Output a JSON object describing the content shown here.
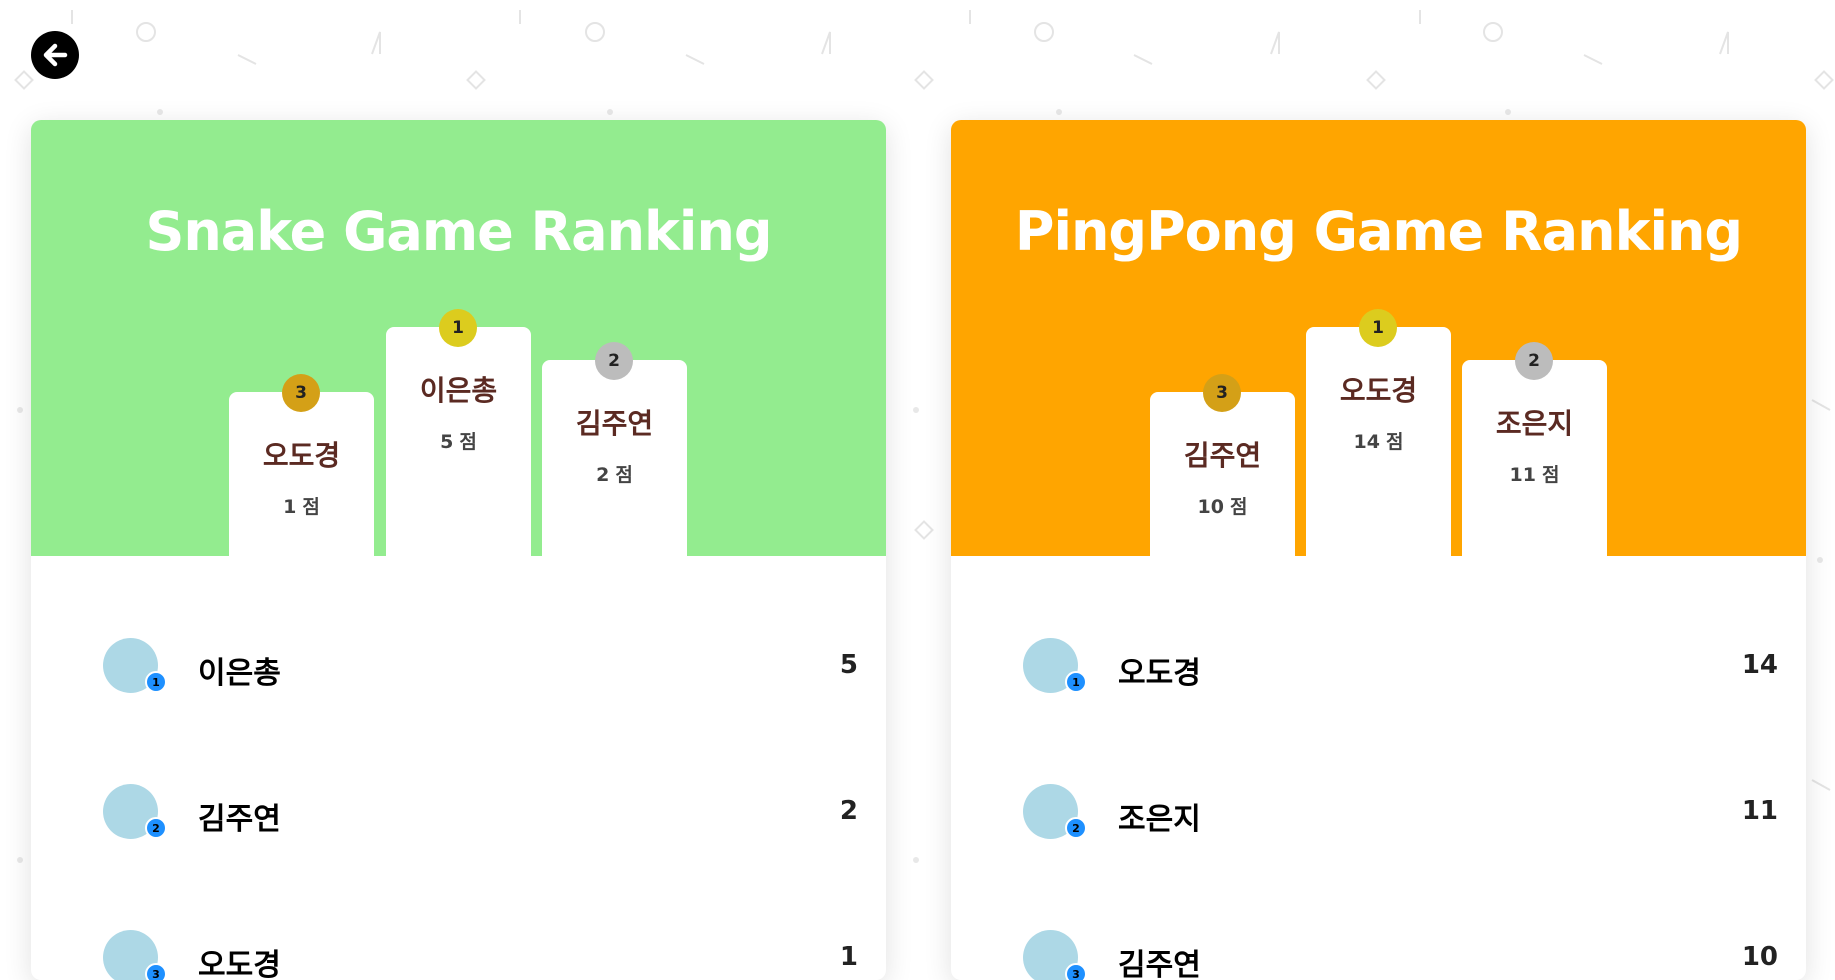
{
  "colors": {
    "snake_header": "#93ec8f",
    "pingpong_header": "#ffa500",
    "gold": "#dccc1e",
    "silver": "#bcbcbc",
    "bronze": "#d4a017",
    "avatar": "#add8e6",
    "rank_dot": "#1e90ff"
  },
  "nav": {
    "back_icon": "arrow-left-icon"
  },
  "score_unit": "점",
  "snake": {
    "title": "Snake Game Ranking",
    "podium": {
      "first": {
        "rank": "1",
        "name": "이은총",
        "score": "5"
      },
      "second": {
        "rank": "2",
        "name": "김주연",
        "score": "2"
      },
      "third": {
        "rank": "3",
        "name": "오도경",
        "score": "1"
      }
    },
    "rankings": [
      {
        "rank": "1",
        "name": "이은총",
        "score": "5"
      },
      {
        "rank": "2",
        "name": "김주연",
        "score": "2"
      },
      {
        "rank": "3",
        "name": "오도경",
        "score": "1"
      }
    ]
  },
  "pingpong": {
    "title": "PingPong Game Ranking",
    "podium": {
      "first": {
        "rank": "1",
        "name": "오도경",
        "score": "14"
      },
      "second": {
        "rank": "2",
        "name": "조은지",
        "score": "11"
      },
      "third": {
        "rank": "3",
        "name": "김주연",
        "score": "10"
      }
    },
    "rankings": [
      {
        "rank": "1",
        "name": "오도경",
        "score": "14"
      },
      {
        "rank": "2",
        "name": "조은지",
        "score": "11"
      },
      {
        "rank": "3",
        "name": "김주연",
        "score": "10"
      }
    ]
  }
}
